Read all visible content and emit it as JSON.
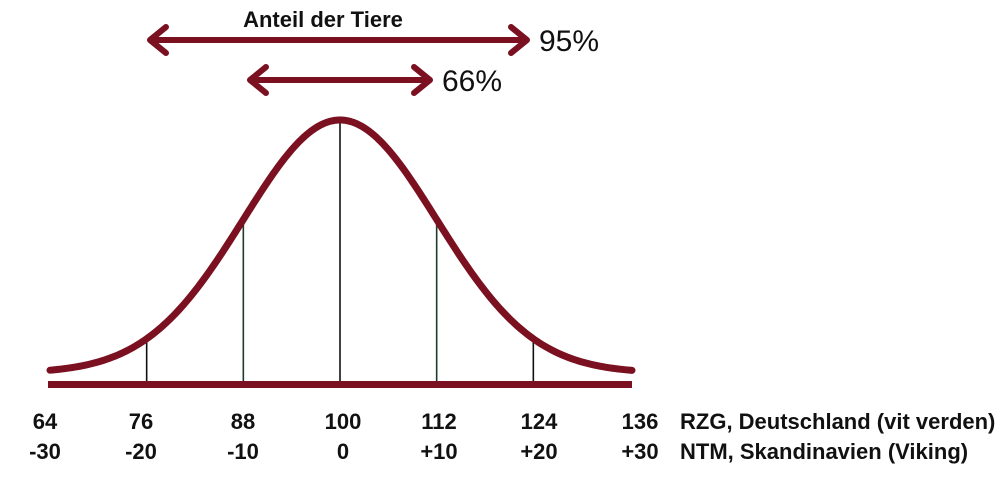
{
  "chart_data": {
    "type": "line",
    "title": "Anteil der Tiere",
    "curve": "normal-distribution",
    "mean": 100,
    "sd": 12,
    "xlim": [
      64,
      136
    ],
    "scales": [
      {
        "name": "RZG, Deutschland (vit verden)",
        "ticks": [
          "64",
          "76",
          "88",
          "100",
          "112",
          "124",
          "136"
        ]
      },
      {
        "name": "NTM, Skandinavien (Viking)",
        "ticks": [
          "-30",
          "-20",
          "-10",
          "0",
          "+10",
          "+20",
          "+30"
        ]
      }
    ],
    "ranges": [
      {
        "label": "95%",
        "from": 76,
        "to": 124
      },
      {
        "label": "66%",
        "from": 88,
        "to": 112
      }
    ],
    "vertical_markers": [
      76,
      88,
      100,
      112,
      124
    ],
    "colors": {
      "curve": "#7a1020",
      "baseline": "#7a1020",
      "arrows": "#7a1020",
      "markers": "#111111"
    }
  }
}
